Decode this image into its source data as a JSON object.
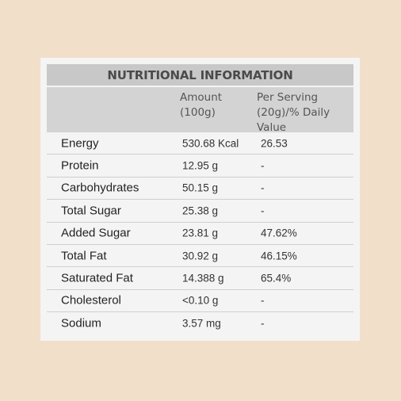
{
  "table": {
    "title": "NUTRITIONAL INFORMATION",
    "headers": {
      "amount": "Amount\n(100g)",
      "serving": "Per Serving\n(20g)/% Daily\nValue"
    },
    "rows": [
      {
        "name": "Energy",
        "amount": "530.68 Kcal",
        "serving": "26.53"
      },
      {
        "name": "Protein",
        "amount": "12.95 g",
        "serving": "-"
      },
      {
        "name": "Carbohydrates",
        "amount": "50.15 g",
        "serving": "-"
      },
      {
        "name": "Total Sugar",
        "amount": "25.38 g",
        "serving": "-"
      },
      {
        "name": "Added Sugar",
        "amount": "23.81 g",
        "serving": "47.62%"
      },
      {
        "name": "Total Fat",
        "amount": "30.92 g",
        "serving": "46.15%"
      },
      {
        "name": "Saturated Fat",
        "amount": "14.388 g",
        "serving": "65.4%"
      },
      {
        "name": "Cholesterol",
        "amount": "<0.10 g",
        "serving": "-"
      },
      {
        "name": "Sodium",
        "amount": "3.57 mg",
        "serving": "-"
      }
    ]
  },
  "colors": {
    "page_background": "#f2dfca",
    "card_background": "#f4f4f4",
    "title_bar": "#c8c8c8",
    "header_row": "#d3d3d3"
  }
}
